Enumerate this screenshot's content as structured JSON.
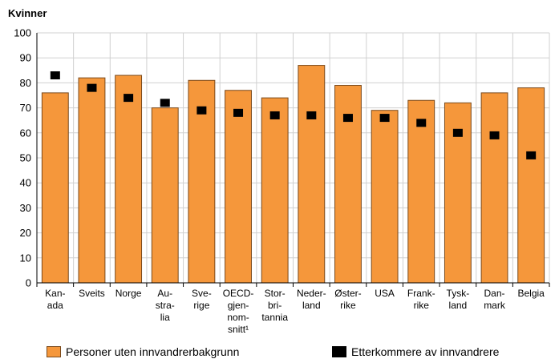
{
  "chart_data": {
    "type": "bar",
    "title": "Kvinner",
    "xlabel": "",
    "ylabel": "",
    "ylim": [
      0,
      100
    ],
    "yticks": [
      0,
      10,
      20,
      30,
      40,
      50,
      60,
      70,
      80,
      90,
      100
    ],
    "grid": true,
    "legend_position": "bottom",
    "categories": [
      [
        "Kan-",
        "ada"
      ],
      [
        "Sveits"
      ],
      [
        "Norge"
      ],
      [
        "Au-",
        "stra-",
        "lia"
      ],
      [
        "Sve-",
        "rige"
      ],
      [
        "OECD-",
        "gjen-",
        "nom-",
        "snitt¹"
      ],
      [
        "Stor-",
        "bri-",
        "tannia"
      ],
      [
        "Neder-",
        "land"
      ],
      [
        "Øster-",
        "rike"
      ],
      [
        "USA"
      ],
      [
        "Frank-",
        "rike"
      ],
      [
        "Tysk-",
        "land"
      ],
      [
        "Dan-",
        "mark"
      ],
      [
        "Belgia"
      ]
    ],
    "series": [
      {
        "name": "Personer uten innvandrerbakgrunn",
        "kind": "bar",
        "color": "#F5973B",
        "values": [
          76,
          82,
          83,
          70,
          81,
          77,
          74,
          87,
          79,
          69,
          73,
          72,
          76,
          78
        ]
      },
      {
        "name": "Etterkommere av innvandrere",
        "kind": "marker",
        "color": "#000000",
        "values": [
          83,
          78,
          74,
          72,
          69,
          68,
          67,
          67,
          66,
          66,
          64,
          60,
          59,
          51
        ]
      }
    ]
  },
  "colors": {
    "bar_fill": "#F5973B",
    "bar_stroke": "#7A4A1C",
    "marker": "#000000",
    "grid": "#d0d0d0"
  }
}
